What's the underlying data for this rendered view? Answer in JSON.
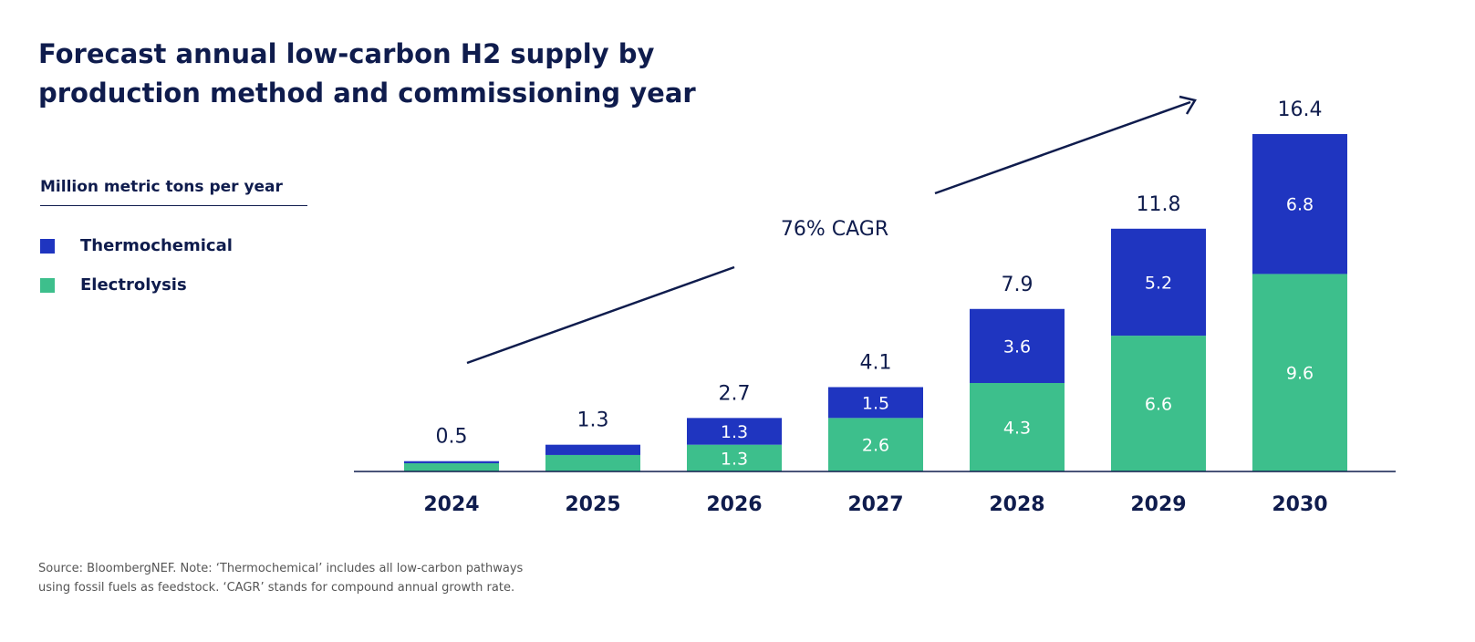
{
  "chart_data": {
    "type": "bar",
    "stacked": true,
    "title": "Forecast annual low-carbon H2 supply by production method and commissioning year",
    "ylabel": "Million metric tons per year",
    "categories": [
      "2024",
      "2025",
      "2026",
      "2027",
      "2028",
      "2029",
      "2030"
    ],
    "series": [
      {
        "name": "Electrolysis",
        "color": "#3dbf8c",
        "values": [
          0.4,
          0.8,
          1.3,
          2.6,
          4.3,
          6.6,
          9.6
        ],
        "labels": [
          "",
          "",
          "1.3",
          "2.6",
          "4.3",
          "6.6",
          "9.6"
        ]
      },
      {
        "name": "Thermochemical",
        "color": "#1f35c0",
        "values": [
          0.1,
          0.5,
          1.3,
          1.5,
          3.6,
          5.2,
          6.8
        ],
        "labels": [
          "",
          "",
          "1.3",
          "1.5",
          "3.6",
          "5.2",
          "6.8"
        ]
      }
    ],
    "totals": [
      "0.5",
      "1.3",
      "2.7",
      "4.1",
      "7.9",
      "11.8",
      "16.4"
    ],
    "annotation": "76% CAGR",
    "legend": "left",
    "grid": false
  },
  "note": [
    "Source: BloombergNEF. Note: ‘Thermochemical’ includes all low-carbon pathways",
    "using fossil fuels as feedstock. ‘CAGR’ stands for compound annual growth rate."
  ]
}
